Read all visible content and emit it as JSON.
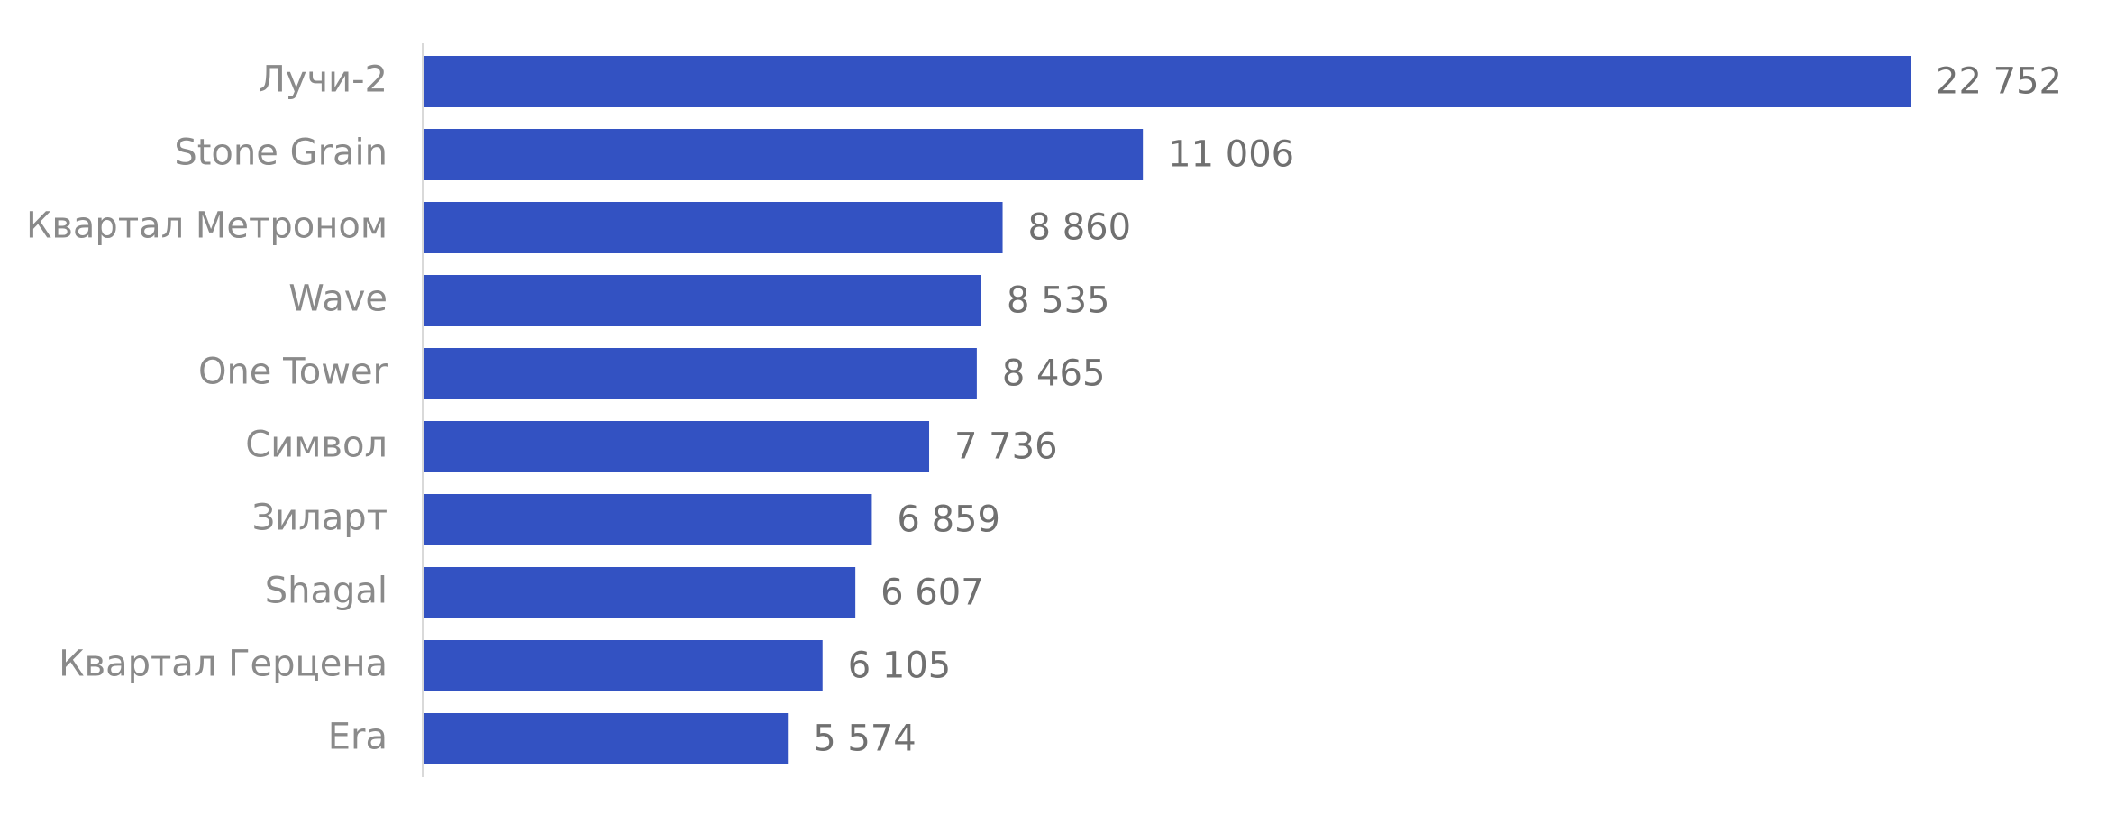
{
  "chart_data": {
    "type": "bar",
    "orientation": "horizontal",
    "categories": [
      "Лучи-2",
      "Stone Grain",
      "Квартал Метроном",
      "Wave",
      "One Tower",
      "Символ",
      "Зиларт",
      "Shagal",
      "Квартал Герцена",
      "Era"
    ],
    "values": [
      22752,
      11006,
      8860,
      8535,
      8465,
      7736,
      6859,
      6607,
      6105,
      5574
    ],
    "value_labels": [
      "22 752",
      "11 006",
      "8 860",
      "8 535",
      "8 465",
      "7 736",
      "6 859",
      "6 607",
      "6 105",
      "5 574"
    ],
    "title": "",
    "xlabel": "",
    "ylabel": "",
    "xlim": [
      0,
      22752
    ],
    "grid": false,
    "legend": "none",
    "colors": {
      "bar": "#3352c2",
      "category_label": "#8a8a8a",
      "value_label": "#707070",
      "axis_line": "#d9d9d9"
    }
  }
}
